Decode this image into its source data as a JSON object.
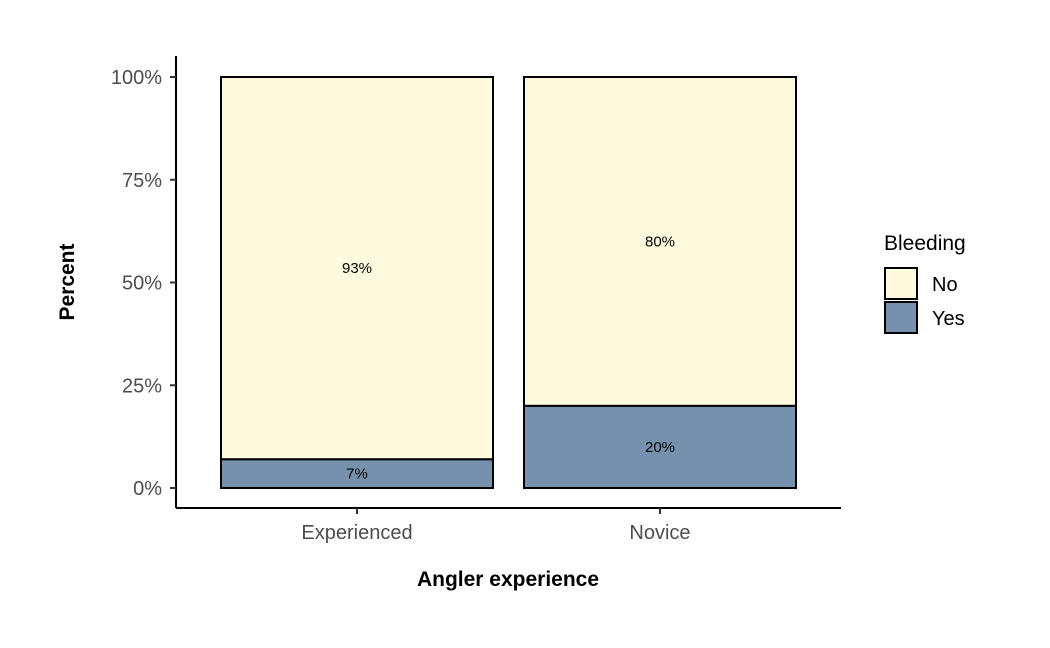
{
  "chart_data": {
    "type": "bar",
    "stacked": true,
    "orientation": "vertical",
    "categories": [
      "Experienced",
      "Novice"
    ],
    "series": [
      {
        "name": "Yes",
        "values": [
          7,
          20
        ],
        "color": "#7591ae",
        "labels": [
          "7%",
          "20%"
        ]
      },
      {
        "name": "No",
        "values": [
          93,
          80
        ],
        "color": "#fefade",
        "labels": [
          "93%",
          "80%"
        ]
      }
    ],
    "xlabel": "Angler experience",
    "ylabel": "Percent",
    "ylim": [
      0,
      100
    ],
    "yticks": [
      0,
      25,
      50,
      75,
      100
    ],
    "ytick_labels": [
      "0%",
      "25%",
      "50%",
      "75%",
      "100%"
    ],
    "grid": false,
    "legend": {
      "title": "Bleeding",
      "position": "right",
      "entries": [
        {
          "label": "No",
          "color": "#fefade"
        },
        {
          "label": "Yes",
          "color": "#7591ae"
        }
      ]
    }
  }
}
